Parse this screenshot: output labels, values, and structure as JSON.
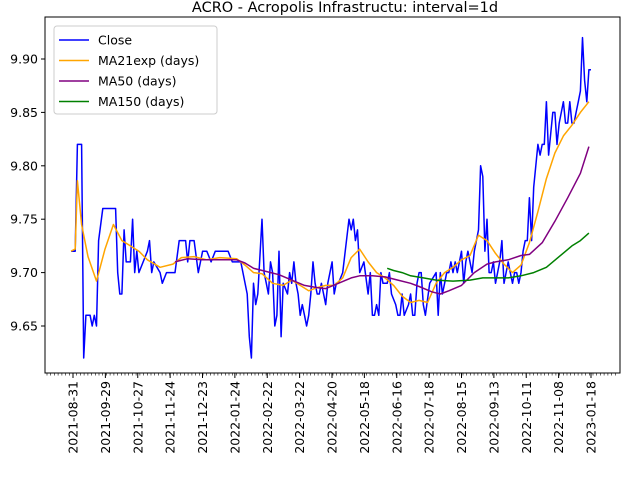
{
  "chart_data": {
    "type": "line",
    "title": "ACRO - Acropolis Infrastructu: interval=1d",
    "xlabel": "",
    "ylabel": "",
    "x_tick_labels": [
      "2021-08-31",
      "2021-09-29",
      "2021-10-27",
      "2021-11-24",
      "2021-12-23",
      "2022-01-24",
      "2022-02-22",
      "2022-03-22",
      "2022-04-20",
      "2022-05-18",
      "2022-06-16",
      "2022-07-18",
      "2022-08-15",
      "2022-09-13",
      "2022-10-11",
      "2022-11-08",
      "2023-01-18"
    ],
    "y_tick_labels": [
      "9.65",
      "9.70",
      "9.75",
      "9.80",
      "9.85",
      "9.90"
    ],
    "ylim": [
      9.604,
      9.936
    ],
    "grid": false,
    "legend_position": "upper left",
    "series": [
      {
        "name": "Close",
        "color": "#0000ff",
        "points": [
          [
            0,
            9.72
          ],
          [
            2,
            9.72
          ],
          [
            3,
            9.82
          ],
          [
            5,
            9.82
          ],
          [
            6,
            9.62
          ],
          [
            7,
            9.66
          ],
          [
            9,
            9.66
          ],
          [
            10,
            9.65
          ],
          [
            11,
            9.66
          ],
          [
            12,
            9.65
          ],
          [
            13,
            9.73
          ],
          [
            15,
            9.76
          ],
          [
            21,
            9.76
          ],
          [
            22,
            9.7
          ],
          [
            23,
            9.68
          ],
          [
            24,
            9.68
          ],
          [
            25,
            9.74
          ],
          [
            26,
            9.71
          ],
          [
            28,
            9.71
          ],
          [
            29,
            9.75
          ],
          [
            30,
            9.7
          ],
          [
            31,
            9.72
          ],
          [
            32,
            9.7
          ],
          [
            36,
            9.72
          ],
          [
            37,
            9.73
          ],
          [
            38,
            9.7
          ],
          [
            39,
            9.71
          ],
          [
            42,
            9.7
          ],
          [
            43,
            9.69
          ],
          [
            45,
            9.7
          ],
          [
            49,
            9.7
          ],
          [
            51,
            9.73
          ],
          [
            54,
            9.73
          ],
          [
            55,
            9.71
          ],
          [
            56,
            9.73
          ],
          [
            58,
            9.73
          ],
          [
            60,
            9.7
          ],
          [
            62,
            9.72
          ],
          [
            64,
            9.72
          ],
          [
            66,
            9.71
          ],
          [
            68,
            9.72
          ],
          [
            74,
            9.72
          ],
          [
            76,
            9.71
          ],
          [
            80,
            9.71
          ],
          [
            83,
            9.68
          ],
          [
            84,
            9.64
          ],
          [
            85,
            9.62
          ],
          [
            86,
            9.69
          ],
          [
            87,
            9.67
          ],
          [
            88,
            9.68
          ],
          [
            90,
            9.75
          ],
          [
            91,
            9.7
          ],
          [
            92,
            9.69
          ],
          [
            93,
            9.68
          ],
          [
            94,
            9.71
          ],
          [
            95,
            9.7
          ],
          [
            96,
            9.65
          ],
          [
            97,
            9.66
          ],
          [
            98,
            9.72
          ],
          [
            99,
            9.64
          ],
          [
            100,
            9.69
          ],
          [
            102,
            9.68
          ],
          [
            103,
            9.7
          ],
          [
            104,
            9.69
          ],
          [
            105,
            9.71
          ],
          [
            106,
            9.69
          ],
          [
            107,
            9.68
          ],
          [
            108,
            9.66
          ],
          [
            109,
            9.67
          ],
          [
            110,
            9.66
          ],
          [
            111,
            9.65
          ],
          [
            112,
            9.66
          ],
          [
            113,
            9.68
          ],
          [
            114,
            9.71
          ],
          [
            115,
            9.69
          ],
          [
            116,
            9.68
          ],
          [
            117,
            9.68
          ],
          [
            118,
            9.69
          ],
          [
            119,
            9.68
          ],
          [
            120,
            9.67
          ],
          [
            121,
            9.69
          ],
          [
            123,
            9.71
          ],
          [
            124,
            9.68
          ],
          [
            125,
            9.69
          ],
          [
            126,
            9.69
          ],
          [
            128,
            9.7
          ],
          [
            131,
            9.75
          ],
          [
            132,
            9.74
          ],
          [
            133,
            9.75
          ],
          [
            134,
            9.73
          ],
          [
            135,
            9.74
          ],
          [
            136,
            9.7
          ],
          [
            138,
            9.71
          ],
          [
            140,
            9.68
          ],
          [
            141,
            9.7
          ],
          [
            142,
            9.66
          ],
          [
            143,
            9.66
          ],
          [
            144,
            9.67
          ],
          [
            145,
            9.66
          ],
          [
            146,
            9.7
          ],
          [
            147,
            9.69
          ],
          [
            149,
            9.69
          ],
          [
            150,
            9.7
          ],
          [
            151,
            9.68
          ],
          [
            153,
            9.67
          ],
          [
            154,
            9.66
          ],
          [
            155,
            9.66
          ],
          [
            156,
            9.68
          ],
          [
            157,
            9.66
          ],
          [
            159,
            9.67
          ],
          [
            160,
            9.68
          ],
          [
            161,
            9.66
          ],
          [
            162,
            9.66
          ],
          [
            163,
            9.69
          ],
          [
            164,
            9.7
          ],
          [
            165,
            9.7
          ],
          [
            166,
            9.67
          ],
          [
            167,
            9.66
          ],
          [
            169,
            9.69
          ],
          [
            172,
            9.7
          ],
          [
            173,
            9.66
          ],
          [
            174,
            9.7
          ],
          [
            175,
            9.68
          ],
          [
            176,
            9.69
          ],
          [
            177,
            9.7
          ],
          [
            178,
            9.7
          ],
          [
            179,
            9.71
          ],
          [
            180,
            9.7
          ],
          [
            181,
            9.71
          ],
          [
            182,
            9.7
          ],
          [
            184,
            9.72
          ],
          [
            185,
            9.69
          ],
          [
            186,
            9.71
          ],
          [
            187,
            9.72
          ],
          [
            188,
            9.71
          ],
          [
            189,
            9.7
          ],
          [
            190,
            9.72
          ],
          [
            191,
            9.73
          ],
          [
            192,
            9.74
          ],
          [
            193,
            9.8
          ],
          [
            194,
            9.79
          ],
          [
            195,
            9.72
          ],
          [
            196,
            9.75
          ],
          [
            197,
            9.7
          ],
          [
            198,
            9.7
          ],
          [
            199,
            9.71
          ],
          [
            200,
            9.69
          ],
          [
            201,
            9.7
          ],
          [
            202,
            9.71
          ],
          [
            203,
            9.73
          ],
          [
            204,
            9.69
          ],
          [
            205,
            9.7
          ],
          [
            206,
            9.71
          ],
          [
            207,
            9.7
          ],
          [
            208,
            9.69
          ],
          [
            209,
            9.7
          ],
          [
            210,
            9.7
          ],
          [
            211,
            9.69
          ],
          [
            212,
            9.7
          ],
          [
            213,
            9.72
          ],
          [
            214,
            9.73
          ],
          [
            215,
            9.73
          ],
          [
            216,
            9.77
          ],
          [
            217,
            9.73
          ],
          [
            218,
            9.78
          ],
          [
            219,
            9.8
          ],
          [
            220,
            9.82
          ],
          [
            221,
            9.81
          ],
          [
            222,
            9.82
          ],
          [
            223,
            9.82
          ],
          [
            224,
            9.86
          ],
          [
            225,
            9.81
          ],
          [
            226,
            9.83
          ],
          [
            227,
            9.85
          ],
          [
            228,
            9.85
          ],
          [
            229,
            9.82
          ],
          [
            230,
            9.84
          ],
          [
            231,
            9.85
          ],
          [
            232,
            9.86
          ],
          [
            233,
            9.84
          ],
          [
            234,
            9.84
          ],
          [
            235,
            9.86
          ],
          [
            236,
            9.84
          ],
          [
            237,
            9.84
          ],
          [
            238,
            9.85
          ],
          [
            239,
            9.86
          ],
          [
            240,
            9.87
          ],
          [
            241,
            9.92
          ],
          [
            242,
            9.88
          ],
          [
            243,
            9.86
          ],
          [
            244,
            9.89
          ],
          [
            245,
            9.89
          ]
        ]
      },
      {
        "name": "MA21exp (days)",
        "color": "#ffa500",
        "points": [
          [
            0,
            9.72
          ],
          [
            2,
            9.722
          ],
          [
            3,
            9.786
          ],
          [
            5,
            9.745
          ],
          [
            8,
            9.715
          ],
          [
            12,
            9.692
          ],
          [
            16,
            9.722
          ],
          [
            20,
            9.745
          ],
          [
            24,
            9.73
          ],
          [
            28,
            9.725
          ],
          [
            32,
            9.72
          ],
          [
            36,
            9.712
          ],
          [
            42,
            9.705
          ],
          [
            48,
            9.708
          ],
          [
            52,
            9.714
          ],
          [
            58,
            9.715
          ],
          [
            64,
            9.712
          ],
          [
            70,
            9.714
          ],
          [
            78,
            9.713
          ],
          [
            82,
            9.707
          ],
          [
            86,
            9.7
          ],
          [
            90,
            9.699
          ],
          [
            95,
            9.69
          ],
          [
            100,
            9.688
          ],
          [
            104,
            9.693
          ],
          [
            108,
            9.688
          ],
          [
            112,
            9.683
          ],
          [
            116,
            9.686
          ],
          [
            120,
            9.688
          ],
          [
            124,
            9.688
          ],
          [
            128,
            9.695
          ],
          [
            132,
            9.714
          ],
          [
            136,
            9.722
          ],
          [
            140,
            9.71
          ],
          [
            144,
            9.7
          ],
          [
            148,
            9.695
          ],
          [
            152,
            9.688
          ],
          [
            156,
            9.678
          ],
          [
            160,
            9.672
          ],
          [
            164,
            9.674
          ],
          [
            168,
            9.672
          ],
          [
            172,
            9.69
          ],
          [
            176,
            9.7
          ],
          [
            180,
            9.705
          ],
          [
            184,
            9.712
          ],
          [
            188,
            9.716
          ],
          [
            192,
            9.735
          ],
          [
            196,
            9.73
          ],
          [
            200,
            9.718
          ],
          [
            204,
            9.708
          ],
          [
            208,
            9.7
          ],
          [
            212,
            9.707
          ],
          [
            216,
            9.728
          ],
          [
            220,
            9.757
          ],
          [
            224,
            9.788
          ],
          [
            228,
            9.812
          ],
          [
            232,
            9.828
          ],
          [
            236,
            9.838
          ],
          [
            240,
            9.85
          ],
          [
            244,
            9.86
          ]
        ]
      },
      {
        "name": "MA50 (days)",
        "color": "#800080",
        "points": [
          [
            49,
            9.71
          ],
          [
            55,
            9.713
          ],
          [
            62,
            9.712
          ],
          [
            70,
            9.712
          ],
          [
            78,
            9.712
          ],
          [
            82,
            9.709
          ],
          [
            86,
            9.704
          ],
          [
            92,
            9.701
          ],
          [
            98,
            9.698
          ],
          [
            104,
            9.693
          ],
          [
            110,
            9.688
          ],
          [
            116,
            9.686
          ],
          [
            120,
            9.685
          ],
          [
            126,
            9.69
          ],
          [
            132,
            9.695
          ],
          [
            136,
            9.697
          ],
          [
            142,
            9.697
          ],
          [
            148,
            9.696
          ],
          [
            154,
            9.693
          ],
          [
            160,
            9.69
          ],
          [
            164,
            9.687
          ],
          [
            170,
            9.682
          ],
          [
            174,
            9.68
          ],
          [
            178,
            9.683
          ],
          [
            184,
            9.688
          ],
          [
            190,
            9.7
          ],
          [
            196,
            9.708
          ],
          [
            200,
            9.71
          ],
          [
            206,
            9.712
          ],
          [
            212,
            9.716
          ],
          [
            216,
            9.717
          ],
          [
            222,
            9.728
          ],
          [
            228,
            9.748
          ],
          [
            234,
            9.77
          ],
          [
            240,
            9.793
          ],
          [
            244,
            9.818
          ]
        ]
      },
      {
        "name": "MA150 (days)",
        "color": "#008000",
        "points": [
          [
            149,
            9.704
          ],
          [
            152,
            9.702
          ],
          [
            156,
            9.7
          ],
          [
            160,
            9.697
          ],
          [
            166,
            9.695
          ],
          [
            172,
            9.693
          ],
          [
            180,
            9.692
          ],
          [
            188,
            9.693
          ],
          [
            194,
            9.695
          ],
          [
            200,
            9.695
          ],
          [
            206,
            9.695
          ],
          [
            212,
            9.697
          ],
          [
            218,
            9.7
          ],
          [
            224,
            9.705
          ],
          [
            230,
            9.715
          ],
          [
            236,
            9.725
          ],
          [
            240,
            9.73
          ],
          [
            244,
            9.737
          ]
        ]
      }
    ]
  }
}
